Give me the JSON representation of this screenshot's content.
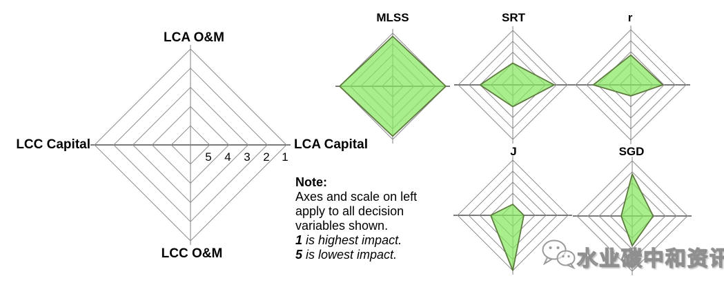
{
  "figure": {
    "background": "#ffffff",
    "watermark": {
      "text": "水业碳中和资讯",
      "icon": "wechat-logo"
    }
  },
  "note": {
    "heading": "Note:",
    "body_lines": [
      "Axes and scale on left",
      "apply to all decision",
      "variables shown."
    ],
    "impact_lines": [
      {
        "num": "1",
        "text": " is highest impact."
      },
      {
        "num": "5",
        "text": " is lowest impact."
      }
    ]
  },
  "chart_data": {
    "type": "radar",
    "grid_shape": "diamond-4-axis",
    "rings": 5,
    "axes": [
      "LCA O&M",
      "LCA Capital",
      "LCC O&M",
      "LCC Capital"
    ],
    "scale_labels": [
      "5",
      "4",
      "3",
      "2",
      "1"
    ],
    "scale_note": "1 at outer ring = highest impact; 5 at innermost ring = lowest impact; axes and scale of left legend chart apply to all small charts",
    "fill_color": "#88e85f",
    "grid_color": "#8c8c8c",
    "legend_chart": {
      "role": "axes-and-scale legend, no data polygon"
    },
    "charts": [
      {
        "title": "MLSS",
        "values": {
          "LCA O&M": 1.3,
          "LCA Capital": 1.0,
          "LCC O&M": 1.3,
          "LCC Capital": 1.0
        }
      },
      {
        "title": "SRT",
        "values": {
          "LCA O&M": 4.0,
          "LCA Capital": 2.2,
          "LCC O&M": 4.0,
          "LCC Capital": 3.0
        }
      },
      {
        "title": "r",
        "values": {
          "LCA O&M": 3.3,
          "LCA Capital": 3.1,
          "LCC O&M": 5.0,
          "LCC Capital": 2.6
        }
      },
      {
        "title": "J",
        "values": {
          "LCA O&M": 5.0,
          "LCA Capital": 5.0,
          "LCC O&M": 1.0,
          "LCC Capital": 4.0
        }
      },
      {
        "title": "SGD",
        "values": {
          "LCA O&M": 2.2,
          "LCA Capital": 4.1,
          "LCC O&M": 3.3,
          "LCC Capital": 5.0
        }
      }
    ]
  }
}
